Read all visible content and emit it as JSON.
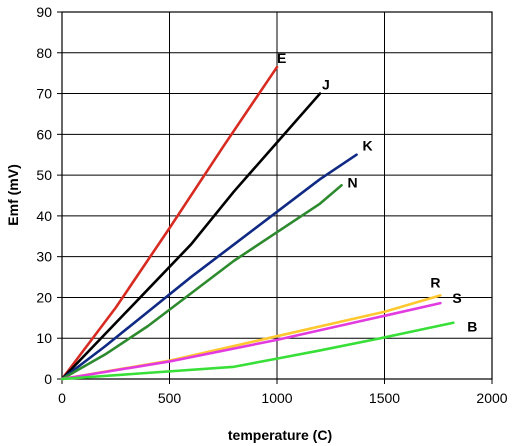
{
  "chart_data": {
    "type": "line",
    "title": "",
    "xlabel": "temperature (C)",
    "ylabel": "Emf (mV)",
    "xlim": [
      0,
      2000
    ],
    "ylim": [
      0,
      90
    ],
    "xticks": [
      0,
      500,
      1000,
      1500,
      2000
    ],
    "yticks": [
      0,
      10,
      20,
      30,
      40,
      50,
      60,
      70,
      80,
      90
    ],
    "grid": true,
    "legend": "direct labels at line ends",
    "series": [
      {
        "name": "E",
        "color": "#d72b22",
        "points": [
          [
            0,
            0
          ],
          [
            250,
            17.5
          ],
          [
            500,
            37
          ],
          [
            750,
            57
          ],
          [
            1000,
            76.5
          ]
        ]
      },
      {
        "name": "J",
        "color": "#000000",
        "points": [
          [
            0,
            0
          ],
          [
            200,
            11
          ],
          [
            400,
            22
          ],
          [
            600,
            33
          ],
          [
            800,
            46
          ],
          [
            1000,
            58
          ],
          [
            1200,
            70
          ]
        ]
      },
      {
        "name": "K",
        "color": "#102a84",
        "points": [
          [
            0,
            0
          ],
          [
            200,
            8
          ],
          [
            400,
            16.5
          ],
          [
            600,
            25
          ],
          [
            800,
            33
          ],
          [
            1000,
            41
          ],
          [
            1200,
            49
          ],
          [
            1370,
            55
          ]
        ]
      },
      {
        "name": "N",
        "color": "#2e8a2e",
        "points": [
          [
            0,
            0
          ],
          [
            200,
            6
          ],
          [
            400,
            13
          ],
          [
            600,
            21
          ],
          [
            800,
            29
          ],
          [
            1000,
            36
          ],
          [
            1200,
            43
          ],
          [
            1300,
            47.5
          ]
        ]
      },
      {
        "name": "R",
        "color": "#ffc830",
        "points": [
          [
            0,
            0
          ],
          [
            500,
            4.5
          ],
          [
            1000,
            10.5
          ],
          [
            1500,
            16.5
          ],
          [
            1760,
            20.5
          ]
        ]
      },
      {
        "name": "S",
        "color": "#e23be0",
        "points": [
          [
            0,
            0
          ],
          [
            500,
            4.3
          ],
          [
            1000,
            9.6
          ],
          [
            1500,
            15.5
          ],
          [
            1760,
            18.6
          ]
        ]
      },
      {
        "name": "B",
        "color": "#38df38",
        "points": [
          [
            0,
            0
          ],
          [
            400,
            1.5
          ],
          [
            800,
            3
          ],
          [
            1000,
            5
          ],
          [
            1200,
            7
          ],
          [
            1500,
            10.2
          ],
          [
            1820,
            13.8
          ]
        ]
      }
    ]
  }
}
